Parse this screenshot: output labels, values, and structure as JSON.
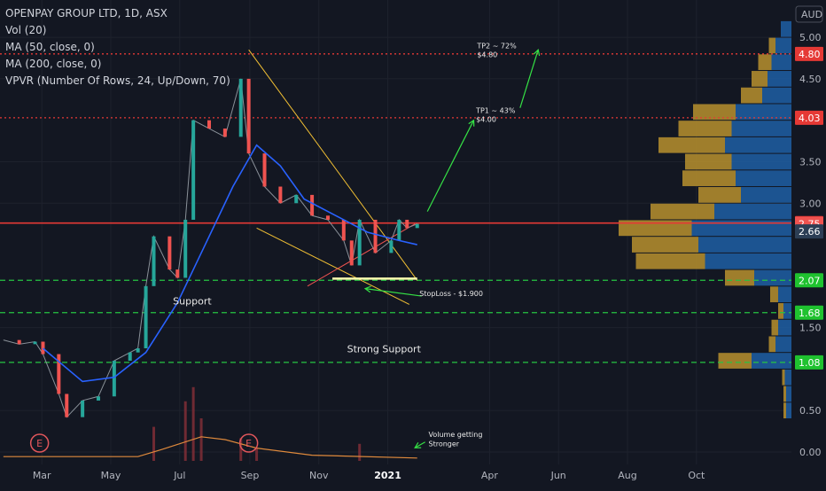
{
  "header": {
    "title": "OPENPAY GROUP LTD, 1D, ASX",
    "indicators": [
      "Vol (20)",
      "MA (50, close, 0)",
      "MA (200, close, 0)",
      "VPVR (Number Of Rows, 24, Up/Down, 70)"
    ],
    "currency": "AUD"
  },
  "colors": {
    "background": "#131722",
    "up": "#26a69a",
    "down": "#ef5350",
    "ma": "#2962ff",
    "support": "#26c443",
    "resistance": "#e53935",
    "triangle": "#f2c034",
    "target_arrow": "#35e145"
  },
  "chart_data": {
    "type": "candlestick",
    "x_axis": {
      "labels": [
        "Mar",
        "May",
        "Jul",
        "Sep",
        "Nov",
        "2021",
        "Apr",
        "Jun",
        "Aug",
        "Oct"
      ],
      "label_months": [
        "2020-03",
        "2020-05",
        "2020-07",
        "2020-09",
        "2020-11",
        "2021-01",
        "2021-04",
        "2021-06",
        "2021-08",
        "2021-10"
      ],
      "range": [
        "2020-01-24",
        "2021-12-24"
      ]
    },
    "y_axis": {
      "ticks": [
        5.0,
        4.5,
        3.5,
        3.0,
        1.5,
        0.5,
        0.0
      ],
      "tick_labels": [
        "5.00",
        "4.50",
        "3.50",
        "3.00",
        "1.50",
        "0.50",
        "0.00"
      ],
      "range": [
        -0.15,
        5.45
      ],
      "price_tags": [
        {
          "value": 4.8,
          "label": "4.80",
          "color": "#e53935"
        },
        {
          "value": 4.03,
          "label": "4.03",
          "color": "#e53935"
        },
        {
          "value": 2.76,
          "label": "2.76",
          "color": "#e53935"
        },
        {
          "value": 2.75,
          "label": "2.75",
          "color": "#ef5350"
        },
        {
          "value": 2.66,
          "label": "2.66",
          "color": "#2c3e55"
        },
        {
          "value": 2.07,
          "label": "2.07",
          "color": "#1fc22f"
        },
        {
          "value": 1.68,
          "label": "1.68",
          "color": "#1fc22f"
        },
        {
          "value": 1.08,
          "label": "1.08",
          "color": "#1fc22f"
        }
      ]
    },
    "price_path": [
      [
        "2020-01-27",
        1.35
      ],
      [
        "2020-02-10",
        1.3
      ],
      [
        "2020-02-24",
        1.33
      ],
      [
        "2020-03-02",
        1.18
      ],
      [
        "2020-03-16",
        0.7
      ],
      [
        "2020-03-23",
        0.42
      ],
      [
        "2020-04-06",
        0.62
      ],
      [
        "2020-04-20",
        0.67
      ],
      [
        "2020-05-04",
        1.1
      ],
      [
        "2020-05-18",
        1.2
      ],
      [
        "2020-05-25",
        1.25
      ],
      [
        "2020-06-01",
        2.0
      ],
      [
        "2020-06-08",
        2.6
      ],
      [
        "2020-06-22",
        2.2
      ],
      [
        "2020-06-29",
        2.1
      ],
      [
        "2020-07-06",
        2.8
      ],
      [
        "2020-07-13",
        4.0
      ],
      [
        "2020-07-27",
        3.9
      ],
      [
        "2020-08-10",
        3.8
      ],
      [
        "2020-08-24",
        4.5
      ],
      [
        "2020-08-31",
        3.6
      ],
      [
        "2020-09-14",
        3.2
      ],
      [
        "2020-09-28",
        3.0
      ],
      [
        "2020-10-12",
        3.1
      ],
      [
        "2020-10-26",
        2.85
      ],
      [
        "2020-11-09",
        2.8
      ],
      [
        "2020-11-23",
        2.55
      ],
      [
        "2020-11-30",
        2.25
      ],
      [
        "2020-12-07",
        2.8
      ],
      [
        "2020-12-21",
        2.4
      ],
      [
        "2021-01-04",
        2.55
      ],
      [
        "2021-01-11",
        2.8
      ],
      [
        "2021-01-18",
        2.7
      ],
      [
        "2021-01-27",
        2.75
      ]
    ],
    "ma_line": [
      [
        "2020-03-02",
        1.25
      ],
      [
        "2020-04-06",
        0.85
      ],
      [
        "2020-05-04",
        0.9
      ],
      [
        "2020-06-01",
        1.2
      ],
      [
        "2020-06-29",
        1.8
      ],
      [
        "2020-07-27",
        2.6
      ],
      [
        "2020-08-17",
        3.2
      ],
      [
        "2020-09-07",
        3.7
      ],
      [
        "2020-09-28",
        3.45
      ],
      [
        "2020-10-19",
        3.05
      ],
      [
        "2020-11-16",
        2.85
      ],
      [
        "2020-12-14",
        2.65
      ],
      [
        "2021-01-11",
        2.55
      ],
      [
        "2021-01-27",
        2.5
      ]
    ],
    "volume": {
      "axis_max": 5000000,
      "bars": [
        [
          "2020-06-08",
          2400000
        ],
        [
          "2020-07-06",
          4200000
        ],
        [
          "2020-07-13",
          5200000
        ],
        [
          "2020-07-20",
          3000000
        ],
        [
          "2020-08-24",
          1600000
        ],
        [
          "2020-09-07",
          900000
        ],
        [
          "2020-12-07",
          1200000
        ]
      ],
      "ma": [
        [
          "2020-01-27",
          300000
        ],
        [
          "2020-05-25",
          300000
        ],
        [
          "2020-06-15",
          800000
        ],
        [
          "2020-07-20",
          1700000
        ],
        [
          "2020-08-10",
          1500000
        ],
        [
          "2020-09-07",
          900000
        ],
        [
          "2020-10-26",
          400000
        ],
        [
          "2021-01-27",
          200000
        ]
      ]
    },
    "horizontal_lines": [
      {
        "value": 4.8,
        "style": "dotted",
        "color": "#e53935"
      },
      {
        "value": 4.03,
        "style": "dotted",
        "color": "#e53935"
      },
      {
        "value": 2.76,
        "style": "solid",
        "color": "#e53935"
      },
      {
        "value": 2.07,
        "style": "dashed",
        "color": "#26c443"
      },
      {
        "value": 1.68,
        "style": "dashed",
        "color": "#26c443"
      },
      {
        "value": 1.08,
        "style": "dashed",
        "color": "#26c443"
      }
    ],
    "vpvr": {
      "max_total": 1.0,
      "rows": [
        {
          "price": 5.1,
          "up": 0.0,
          "down": 0.08
        },
        {
          "price": 4.9,
          "up": 0.05,
          "down": 0.12
        },
        {
          "price": 4.7,
          "up": 0.1,
          "down": 0.15
        },
        {
          "price": 4.5,
          "up": 0.12,
          "down": 0.18
        },
        {
          "price": 4.3,
          "up": 0.16,
          "down": 0.22
        },
        {
          "price": 4.1,
          "up": 0.32,
          "down": 0.42
        },
        {
          "price": 3.9,
          "up": 0.4,
          "down": 0.45
        },
        {
          "price": 3.7,
          "up": 0.5,
          "down": 0.5
        },
        {
          "price": 3.5,
          "up": 0.35,
          "down": 0.45
        },
        {
          "price": 3.3,
          "up": 0.4,
          "down": 0.42
        },
        {
          "price": 3.1,
          "up": 0.32,
          "down": 0.38
        },
        {
          "price": 2.9,
          "up": 0.48,
          "down": 0.58
        },
        {
          "price": 2.7,
          "up": 0.55,
          "down": 0.75
        },
        {
          "price": 2.5,
          "up": 0.5,
          "down": 0.7
        },
        {
          "price": 2.3,
          "up": 0.52,
          "down": 0.65
        },
        {
          "price": 2.1,
          "up": 0.22,
          "down": 0.28
        },
        {
          "price": 1.9,
          "up": 0.06,
          "down": 0.1
        },
        {
          "price": 1.7,
          "up": 0.04,
          "down": 0.06
        },
        {
          "price": 1.5,
          "up": 0.05,
          "down": 0.1
        },
        {
          "price": 1.3,
          "up": 0.05,
          "down": 0.12
        },
        {
          "price": 1.1,
          "up": 0.25,
          "down": 0.3
        },
        {
          "price": 0.9,
          "up": 0.02,
          "down": 0.05
        },
        {
          "price": 0.7,
          "up": 0.02,
          "down": 0.04
        },
        {
          "price": 0.5,
          "up": 0.02,
          "down": 0.04
        }
      ]
    },
    "annotations": [
      {
        "text": "Support",
        "date": "2020-06-25",
        "price": 1.78
      },
      {
        "text": "Strong Support",
        "date": "2020-11-26",
        "price": 1.2
      },
      {
        "text": "StopLoss - $1.900",
        "date": "2021-01-29",
        "price": 1.88
      },
      {
        "text": "TP1 ~ 43%",
        "date": "2021-03-20",
        "price": 4.09
      },
      {
        "text": "$4.00",
        "date": "2021-03-20",
        "price": 3.98
      },
      {
        "text": "TP2 ~ 72%",
        "date": "2021-03-21",
        "price": 4.87
      },
      {
        "text": "$4.80",
        "date": "2021-03-21",
        "price": 4.76
      },
      {
        "text": "Volume getting",
        "date": "2021-02-06",
        "price": 0.18
      },
      {
        "text": "Stronger",
        "date": "2021-02-06",
        "price": 0.07
      }
    ],
    "earnings": [
      {
        "label": "E",
        "date": "2020-02-28"
      },
      {
        "label": "E",
        "date": "2020-08-31"
      }
    ]
  }
}
